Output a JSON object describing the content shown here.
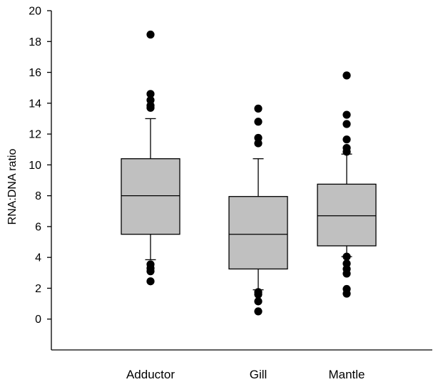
{
  "chart_data": {
    "type": "box",
    "title": "",
    "xlabel": "",
    "ylabel": "RNA:DNA ratio",
    "ylim": [
      -2,
      20
    ],
    "yticks": [
      0,
      2,
      4,
      6,
      8,
      10,
      12,
      14,
      16,
      18,
      20
    ],
    "ytick_labels": [
      "0",
      "2",
      "4",
      "6",
      "8",
      "10",
      "12",
      "14",
      "16",
      "18",
      "20"
    ],
    "categories": [
      "Adductor",
      "Gill",
      "Mantle"
    ],
    "box_color": "#c0c0c0",
    "boxes": [
      {
        "category": "Adductor",
        "whisker_low": 3.85,
        "q1": 5.5,
        "median": 8.0,
        "q3": 10.4,
        "whisker_high": 13.0,
        "outliers": [
          2.45,
          3.1,
          3.3,
          3.55,
          13.7,
          13.85,
          14.2,
          14.6,
          18.45
        ]
      },
      {
        "category": "Gill",
        "whisker_low": 1.9,
        "q1": 3.25,
        "median": 5.5,
        "q3": 7.95,
        "whisker_high": 10.4,
        "outliers": [
          0.5,
          1.15,
          1.6,
          1.75,
          11.4,
          11.75,
          12.8,
          13.65
        ]
      },
      {
        "category": "Mantle",
        "whisker_low": 4.05,
        "q1": 4.75,
        "median": 6.7,
        "q3": 8.75,
        "whisker_high": 10.7,
        "outliers": [
          1.65,
          1.95,
          2.95,
          3.25,
          3.6,
          4.05,
          10.85,
          11.1,
          11.65,
          12.65,
          13.25,
          15.8
        ]
      }
    ]
  }
}
